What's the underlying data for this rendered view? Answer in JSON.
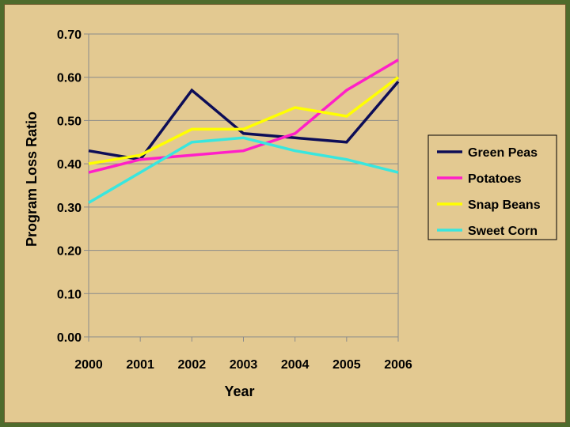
{
  "chart_data": {
    "type": "line",
    "title": "",
    "xlabel": "Year",
    "ylabel": "Program Loss Ratio",
    "categories": [
      "2000",
      "2001",
      "2002",
      "2003",
      "2004",
      "2005",
      "2006"
    ],
    "ylim": [
      0,
      0.7
    ],
    "yticks": [
      "0.00",
      "0.10",
      "0.20",
      "0.30",
      "0.40",
      "0.50",
      "0.60",
      "0.70"
    ],
    "ytick_values": [
      0,
      0.1,
      0.2,
      0.3,
      0.4,
      0.5,
      0.6,
      0.7
    ],
    "grid": "horizontal",
    "legend_position": "right",
    "series": [
      {
        "name": "Green Peas",
        "color": "#0d0d57",
        "values": [
          0.43,
          0.41,
          0.57,
          0.47,
          0.46,
          0.45,
          0.59
        ]
      },
      {
        "name": "Potatoes",
        "color": "#ff1fc8",
        "values": [
          0.38,
          0.41,
          0.42,
          0.43,
          0.47,
          0.57,
          0.64
        ]
      },
      {
        "name": "Snap Beans",
        "color": "#ffff00",
        "values": [
          0.4,
          0.42,
          0.48,
          0.48,
          0.53,
          0.51,
          0.6
        ]
      },
      {
        "name": "Sweet Corn",
        "color": "#39e6de",
        "values": [
          0.31,
          0.38,
          0.45,
          0.46,
          0.43,
          0.41,
          0.38
        ]
      }
    ]
  }
}
